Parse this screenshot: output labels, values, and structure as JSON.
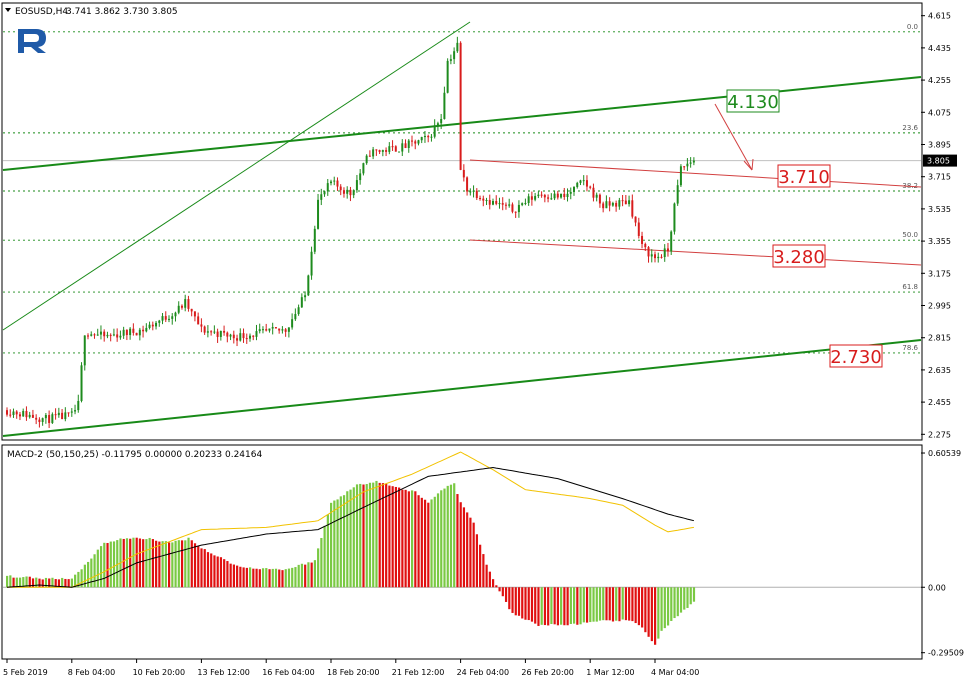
{
  "header": {
    "symbol": "EOSUSD,H4",
    "ohlc": "3.741 3.862 3.730 3.805"
  },
  "macd_header": "MACD-2 (50,150,25) -0.11795 0.00000 0.20233 0.24164",
  "colors": {
    "bull": "#1e8b1e",
    "bear": "#d81c1c",
    "grid": "#188a18",
    "trend_green": "#188a18",
    "channel_red": "#d24040",
    "label_green": "#1e8b1e",
    "label_red": "#d81c1c",
    "macd_signal": "#f2c200",
    "macd_line": "#000000",
    "hist_green": "#7ac943",
    "hist_red": "#e01010",
    "logo": "#1f5aa8"
  },
  "chart_data": [
    {
      "type": "candlestick",
      "symbol": "EOSUSD",
      "timeframe": "H4",
      "y_ticks": [
        "4.615",
        "4.435",
        "4.255",
        "4.075",
        "3.895",
        "3.715",
        "3.535",
        "3.355",
        "3.175",
        "2.995",
        "2.815",
        "2.635",
        "2.455",
        "2.275"
      ],
      "ylim": [
        2.26,
        4.63
      ],
      "x_ticks": [
        "5 Feb 2019",
        "8 Feb 04:00",
        "10 Feb 20:00",
        "13 Feb 12:00",
        "16 Feb 04:00",
        "18 Feb 20:00",
        "21 Feb 12:00",
        "24 Feb 04:00",
        "26 Feb 20:00",
        "1 Mar 12:00",
        "4 Mar 04:00"
      ],
      "current_price": "3.805",
      "fib_levels": [
        {
          "label": "0.0",
          "value": 4.525
        },
        {
          "label": "23.6",
          "value": 3.96
        },
        {
          "label": "38.2",
          "value": 3.635
        },
        {
          "label": "50.0",
          "value": 3.36
        },
        {
          "label": "61.8",
          "value": 3.07
        },
        {
          "label": "78.6",
          "value": 2.73
        }
      ],
      "price_labels": [
        {
          "text": "4.130",
          "color": "green"
        },
        {
          "text": "3.710",
          "color": "red"
        },
        {
          "text": "3.280",
          "color": "red"
        },
        {
          "text": "2.730",
          "color": "red"
        }
      ],
      "waypoints": [
        [
          0,
          2.41
        ],
        [
          12,
          2.36
        ],
        [
          20,
          2.38
        ],
        [
          22,
          2.44
        ],
        [
          24,
          2.85
        ],
        [
          30,
          2.82
        ],
        [
          42,
          2.86
        ],
        [
          52,
          2.96
        ],
        [
          55,
          3.01
        ],
        [
          60,
          2.86
        ],
        [
          70,
          2.82
        ],
        [
          86,
          2.86
        ],
        [
          92,
          3.05
        ],
        [
          96,
          3.58
        ],
        [
          100,
          3.68
        ],
        [
          106,
          3.62
        ],
        [
          112,
          3.85
        ],
        [
          122,
          3.88
        ],
        [
          130,
          3.93
        ],
        [
          134,
          4.05
        ],
        [
          136,
          4.36
        ],
        [
          139,
          4.45
        ],
        [
          140,
          3.75
        ],
        [
          142,
          3.65
        ],
        [
          150,
          3.57
        ],
        [
          156,
          3.53
        ],
        [
          164,
          3.62
        ],
        [
          172,
          3.6
        ],
        [
          178,
          3.69
        ],
        [
          184,
          3.55
        ],
        [
          192,
          3.58
        ],
        [
          196,
          3.32
        ],
        [
          200,
          3.26
        ],
        [
          204,
          3.3
        ],
        [
          206,
          3.55
        ],
        [
          208,
          3.76
        ],
        [
          212,
          3.81
        ]
      ]
    },
    {
      "type": "histogram+line",
      "name": "MACD-2 (50,150,25)",
      "y_ticks": [
        "0.60539",
        "0.00",
        "-0.29509"
      ],
      "ylim": [
        -0.31,
        0.61
      ],
      "hist_waypoints": [
        [
          0,
          0.05
        ],
        [
          10,
          0.04
        ],
        [
          20,
          0.04
        ],
        [
          24,
          0.1
        ],
        [
          30,
          0.2
        ],
        [
          36,
          0.22
        ],
        [
          44,
          0.22
        ],
        [
          50,
          0.2
        ],
        [
          56,
          0.22
        ],
        [
          62,
          0.16
        ],
        [
          72,
          0.09
        ],
        [
          86,
          0.08
        ],
        [
          95,
          0.12
        ],
        [
          100,
          0.38
        ],
        [
          108,
          0.46
        ],
        [
          114,
          0.48
        ],
        [
          120,
          0.45
        ],
        [
          126,
          0.43
        ],
        [
          130,
          0.38
        ],
        [
          134,
          0.44
        ],
        [
          138,
          0.47
        ],
        [
          140,
          0.38
        ],
        [
          144,
          0.29
        ],
        [
          148,
          0.1
        ],
        [
          152,
          -0.02
        ],
        [
          156,
          -0.12
        ],
        [
          164,
          -0.17
        ],
        [
          172,
          -0.17
        ],
        [
          180,
          -0.16
        ],
        [
          186,
          -0.15
        ],
        [
          192,
          -0.15
        ],
        [
          196,
          -0.18
        ],
        [
          200,
          -0.26
        ],
        [
          202,
          -0.2
        ],
        [
          206,
          -0.14
        ],
        [
          212,
          -0.07
        ]
      ],
      "signal_waypoints": [
        [
          0,
          0.0
        ],
        [
          20,
          0.0
        ],
        [
          30,
          0.07
        ],
        [
          40,
          0.15
        ],
        [
          60,
          0.26
        ],
        [
          80,
          0.27
        ],
        [
          96,
          0.3
        ],
        [
          110,
          0.43
        ],
        [
          125,
          0.51
        ],
        [
          140,
          0.61
        ],
        [
          150,
          0.53
        ],
        [
          160,
          0.44
        ],
        [
          180,
          0.4
        ],
        [
          190,
          0.37
        ],
        [
          200,
          0.28
        ],
        [
          204,
          0.25
        ],
        [
          212,
          0.27
        ]
      ],
      "macd_waypoints": [
        [
          0,
          0.0
        ],
        [
          10,
          0.01
        ],
        [
          20,
          0.0
        ],
        [
          30,
          0.04
        ],
        [
          40,
          0.11
        ],
        [
          60,
          0.19
        ],
        [
          80,
          0.24
        ],
        [
          96,
          0.26
        ],
        [
          110,
          0.36
        ],
        [
          130,
          0.5
        ],
        [
          150,
          0.54
        ],
        [
          170,
          0.49
        ],
        [
          190,
          0.4
        ],
        [
          204,
          0.33
        ],
        [
          212,
          0.3
        ]
      ]
    }
  ]
}
